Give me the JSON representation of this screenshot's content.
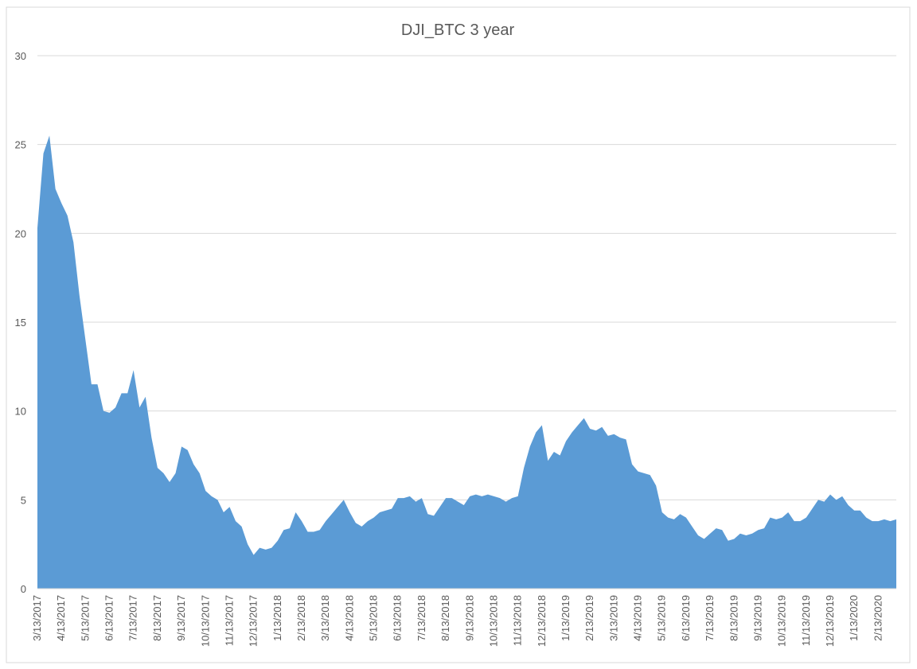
{
  "chart_data": {
    "type": "area",
    "title": "DJI_BTC 3 year",
    "color": "#5b9bd5",
    "grid": true,
    "ylim": [
      0,
      30
    ],
    "yticks": [
      0,
      5,
      10,
      15,
      20,
      25,
      30
    ],
    "categories": [
      "3/13/2017",
      null,
      null,
      null,
      "4/13/2017",
      null,
      null,
      null,
      "5/13/2017",
      null,
      null,
      null,
      "6/13/2017",
      null,
      null,
      null,
      "7/13/2017",
      null,
      null,
      null,
      "8/13/2017",
      null,
      null,
      null,
      "9/13/2017",
      null,
      null,
      null,
      "10/13/2017",
      null,
      null,
      null,
      "11/13/2017",
      null,
      null,
      null,
      "12/13/2017",
      null,
      null,
      null,
      "1/13/2018",
      null,
      null,
      null,
      "2/13/2018",
      null,
      null,
      null,
      "3/13/2018",
      null,
      null,
      null,
      "4/13/2018",
      null,
      null,
      null,
      "5/13/2018",
      null,
      null,
      null,
      "6/13/2018",
      null,
      null,
      null,
      "7/13/2018",
      null,
      null,
      null,
      "8/13/2018",
      null,
      null,
      null,
      "9/13/2018",
      null,
      null,
      null,
      "10/13/2018",
      null,
      null,
      null,
      "11/13/2018",
      null,
      null,
      null,
      "12/13/2018",
      null,
      null,
      null,
      "1/13/2019",
      null,
      null,
      null,
      "2/13/2019",
      null,
      null,
      null,
      "3/13/2019",
      null,
      null,
      null,
      "4/13/2019",
      null,
      null,
      null,
      "5/13/2019",
      null,
      null,
      null,
      "6/13/2019",
      null,
      null,
      null,
      "7/13/2019",
      null,
      null,
      null,
      "8/13/2019",
      null,
      null,
      null,
      "9/13/2019",
      null,
      null,
      null,
      "10/13/2019",
      null,
      null,
      null,
      "11/13/2019",
      null,
      null,
      null,
      "12/13/2019",
      null,
      null,
      null,
      "1/13/2020",
      null,
      null,
      null,
      "2/13/2020",
      null,
      null,
      null
    ],
    "values": [
      20.3,
      24.5,
      25.5,
      22.5,
      21.7,
      21.0,
      19.5,
      16.5,
      14.0,
      11.5,
      11.5,
      10.0,
      9.9,
      10.2,
      11.0,
      11.0,
      12.3,
      10.2,
      10.8,
      8.5,
      6.8,
      6.5,
      6.0,
      6.5,
      8.0,
      7.8,
      7.0,
      6.5,
      5.5,
      5.2,
      5.0,
      4.3,
      4.6,
      3.8,
      3.5,
      2.5,
      1.9,
      2.3,
      2.2,
      2.3,
      2.7,
      3.3,
      3.4,
      4.3,
      3.8,
      3.2,
      3.2,
      3.3,
      3.8,
      4.2,
      4.6,
      5.0,
      4.3,
      3.7,
      3.5,
      3.8,
      4.0,
      4.3,
      4.4,
      4.5,
      5.1,
      5.1,
      5.2,
      4.9,
      5.1,
      4.2,
      4.1,
      4.6,
      5.1,
      5.1,
      4.9,
      4.7,
      5.2,
      5.3,
      5.2,
      5.3,
      5.2,
      5.1,
      4.9,
      5.1,
      5.2,
      6.8,
      8.0,
      8.8,
      9.2,
      7.2,
      7.7,
      7.5,
      8.3,
      8.8,
      9.2,
      9.6,
      9.0,
      8.9,
      9.1,
      8.6,
      8.7,
      8.5,
      8.4,
      7.0,
      6.6,
      6.5,
      6.4,
      5.8,
      4.3,
      4.0,
      3.9,
      4.2,
      4.0,
      3.5,
      3.0,
      2.8,
      3.1,
      3.4,
      3.3,
      2.7,
      2.8,
      3.1,
      3.0,
      3.1,
      3.3,
      3.4,
      4.0,
      3.9,
      4.0,
      4.3,
      3.8,
      3.8,
      4.0,
      4.5,
      5.0,
      4.9,
      5.3,
      5.0,
      5.2,
      4.7,
      4.4,
      4.4,
      4.0,
      3.8,
      3.8,
      3.9,
      3.8,
      3.9
    ]
  }
}
